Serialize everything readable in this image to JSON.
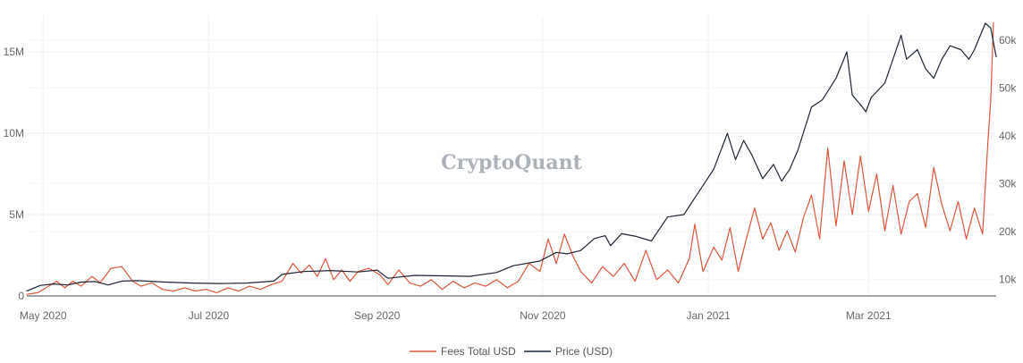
{
  "watermark": "CryptoQuant",
  "chart_data": {
    "type": "line",
    "x_type": "date",
    "xlim": [
      "2020-04-25",
      "2021-04-17"
    ],
    "x_ticks": [
      {
        "value": "2020-05-01",
        "label": "May 2020"
      },
      {
        "value": "2020-07-01",
        "label": "Jul 2020"
      },
      {
        "value": "2020-09-01",
        "label": "Sep 2020"
      },
      {
        "value": "2020-11-01",
        "label": "Nov 2020"
      },
      {
        "value": "2021-01-01",
        "label": "Jan 2021"
      },
      {
        "value": "2021-03-01",
        "label": "Mar 2021"
      }
    ],
    "y_left": {
      "ylim": [
        0,
        17200000
      ],
      "ticks": [
        {
          "value": 0,
          "label": "0"
        },
        {
          "value": 5000000,
          "label": "5M"
        },
        {
          "value": 10000000,
          "label": "10M"
        },
        {
          "value": 15000000,
          "label": "15M"
        }
      ]
    },
    "y_right": {
      "ylim": [
        6500,
        65000
      ],
      "ticks": [
        {
          "value": 10000,
          "label": "10k"
        },
        {
          "value": 20000,
          "label": "20k"
        },
        {
          "value": 30000,
          "label": "30k"
        },
        {
          "value": 40000,
          "label": "40k"
        },
        {
          "value": 50000,
          "label": "50k"
        },
        {
          "value": 60000,
          "label": "60k"
        }
      ]
    },
    "grid": true,
    "legend_position": "bottom-center",
    "series": [
      {
        "name": "Fees Total USD",
        "axis": "left",
        "color": "#e0553b",
        "points": [
          [
            "2020-04-25",
            100000
          ],
          [
            "2020-04-29",
            200000
          ],
          [
            "2020-05-03",
            600000
          ],
          [
            "2020-05-06",
            900000
          ],
          [
            "2020-05-09",
            500000
          ],
          [
            "2020-05-12",
            900000
          ],
          [
            "2020-05-15",
            600000
          ],
          [
            "2020-05-19",
            1200000
          ],
          [
            "2020-05-22",
            800000
          ],
          [
            "2020-05-26",
            1700000
          ],
          [
            "2020-05-30",
            1800000
          ],
          [
            "2020-06-03",
            900000
          ],
          [
            "2020-06-06",
            600000
          ],
          [
            "2020-06-10",
            800000
          ],
          [
            "2020-06-14",
            400000
          ],
          [
            "2020-06-18",
            300000
          ],
          [
            "2020-06-22",
            500000
          ],
          [
            "2020-06-26",
            300000
          ],
          [
            "2020-06-30",
            400000
          ],
          [
            "2020-07-04",
            200000
          ],
          [
            "2020-07-08",
            500000
          ],
          [
            "2020-07-12",
            300000
          ],
          [
            "2020-07-16",
            600000
          ],
          [
            "2020-07-20",
            400000
          ],
          [
            "2020-07-24",
            700000
          ],
          [
            "2020-07-28",
            900000
          ],
          [
            "2020-08-01",
            2000000
          ],
          [
            "2020-08-04",
            1400000
          ],
          [
            "2020-08-07",
            1900000
          ],
          [
            "2020-08-10",
            1200000
          ],
          [
            "2020-08-13",
            2300000
          ],
          [
            "2020-08-16",
            1000000
          ],
          [
            "2020-08-19",
            1600000
          ],
          [
            "2020-08-22",
            900000
          ],
          [
            "2020-08-25",
            1500000
          ],
          [
            "2020-08-29",
            1700000
          ],
          [
            "2020-09-02",
            1300000
          ],
          [
            "2020-09-05",
            700000
          ],
          [
            "2020-09-09",
            1600000
          ],
          [
            "2020-09-13",
            800000
          ],
          [
            "2020-09-17",
            600000
          ],
          [
            "2020-09-21",
            1000000
          ],
          [
            "2020-09-25",
            400000
          ],
          [
            "2020-09-29",
            900000
          ],
          [
            "2020-10-03",
            500000
          ],
          [
            "2020-10-07",
            800000
          ],
          [
            "2020-10-11",
            600000
          ],
          [
            "2020-10-15",
            1000000
          ],
          [
            "2020-10-19",
            500000
          ],
          [
            "2020-10-23",
            900000
          ],
          [
            "2020-10-27",
            2000000
          ],
          [
            "2020-10-31",
            1500000
          ],
          [
            "2020-11-03",
            3500000
          ],
          [
            "2020-11-06",
            2000000
          ],
          [
            "2020-11-09",
            3800000
          ],
          [
            "2020-11-12",
            2500000
          ],
          [
            "2020-11-15",
            1500000
          ],
          [
            "2020-11-19",
            800000
          ],
          [
            "2020-11-23",
            1800000
          ],
          [
            "2020-11-27",
            1200000
          ],
          [
            "2020-12-01",
            2000000
          ],
          [
            "2020-12-05",
            900000
          ],
          [
            "2020-12-09",
            2800000
          ],
          [
            "2020-12-13",
            1000000
          ],
          [
            "2020-12-17",
            1600000
          ],
          [
            "2020-12-21",
            800000
          ],
          [
            "2020-12-25",
            2300000
          ],
          [
            "2020-12-27",
            4400000
          ],
          [
            "2020-12-30",
            1500000
          ],
          [
            "2021-01-03",
            3000000
          ],
          [
            "2021-01-06",
            2200000
          ],
          [
            "2021-01-09",
            4200000
          ],
          [
            "2021-01-12",
            1500000
          ],
          [
            "2021-01-15",
            3500000
          ],
          [
            "2021-01-18",
            5400000
          ],
          [
            "2021-01-21",
            3500000
          ],
          [
            "2021-01-24",
            4500000
          ],
          [
            "2021-01-27",
            2800000
          ],
          [
            "2021-01-30",
            4000000
          ],
          [
            "2021-02-02",
            2700000
          ],
          [
            "2021-02-05",
            4800000
          ],
          [
            "2021-02-08",
            6200000
          ],
          [
            "2021-02-11",
            3500000
          ],
          [
            "2021-02-14",
            9100000
          ],
          [
            "2021-02-17",
            4300000
          ],
          [
            "2021-02-20",
            8300000
          ],
          [
            "2021-02-23",
            5000000
          ],
          [
            "2021-02-26",
            8600000
          ],
          [
            "2021-03-01",
            5200000
          ],
          [
            "2021-03-04",
            7500000
          ],
          [
            "2021-03-07",
            4000000
          ],
          [
            "2021-03-10",
            6800000
          ],
          [
            "2021-03-13",
            3800000
          ],
          [
            "2021-03-16",
            5800000
          ],
          [
            "2021-03-19",
            6300000
          ],
          [
            "2021-03-22",
            4200000
          ],
          [
            "2021-03-25",
            7900000
          ],
          [
            "2021-03-28",
            5600000
          ],
          [
            "2021-03-31",
            4000000
          ],
          [
            "2021-04-03",
            5800000
          ],
          [
            "2021-04-06",
            3500000
          ],
          [
            "2021-04-09",
            5400000
          ],
          [
            "2021-04-12",
            3800000
          ],
          [
            "2021-04-14",
            9600000
          ],
          [
            "2021-04-15",
            12000000
          ],
          [
            "2021-04-16",
            16800000
          ]
        ]
      },
      {
        "name": "Price (USD)",
        "axis": "right",
        "color": "#1c2536",
        "points": [
          [
            "2020-04-25",
            7550
          ],
          [
            "2020-04-30",
            8700
          ],
          [
            "2020-05-05",
            9000
          ],
          [
            "2020-05-10",
            8800
          ],
          [
            "2020-05-15",
            9400
          ],
          [
            "2020-05-20",
            9500
          ],
          [
            "2020-05-25",
            8800
          ],
          [
            "2020-05-30",
            9600
          ],
          [
            "2020-06-05",
            9700
          ],
          [
            "2020-06-15",
            9400
          ],
          [
            "2020-06-25",
            9200
          ],
          [
            "2020-07-05",
            9100
          ],
          [
            "2020-07-15",
            9200
          ],
          [
            "2020-07-25",
            9600
          ],
          [
            "2020-07-28",
            11000
          ],
          [
            "2020-08-05",
            11600
          ],
          [
            "2020-08-15",
            11800
          ],
          [
            "2020-08-25",
            11500
          ],
          [
            "2020-09-01",
            11900
          ],
          [
            "2020-09-05",
            10200
          ],
          [
            "2020-09-15",
            10800
          ],
          [
            "2020-09-25",
            10700
          ],
          [
            "2020-10-05",
            10600
          ],
          [
            "2020-10-15",
            11400
          ],
          [
            "2020-10-21",
            12800
          ],
          [
            "2020-10-31",
            13800
          ],
          [
            "2020-11-06",
            15600
          ],
          [
            "2020-11-10",
            15300
          ],
          [
            "2020-11-15",
            16000
          ],
          [
            "2020-11-20",
            18500
          ],
          [
            "2020-11-24",
            19100
          ],
          [
            "2020-11-26",
            17000
          ],
          [
            "2020-11-30",
            19500
          ],
          [
            "2020-12-05",
            19000
          ],
          [
            "2020-12-11",
            18000
          ],
          [
            "2020-12-17",
            23000
          ],
          [
            "2020-12-23",
            23500
          ],
          [
            "2020-12-27",
            27000
          ],
          [
            "2021-01-03",
            33000
          ],
          [
            "2021-01-08",
            40500
          ],
          [
            "2021-01-11",
            35000
          ],
          [
            "2021-01-14",
            39000
          ],
          [
            "2021-01-17",
            36000
          ],
          [
            "2021-01-21",
            31000
          ],
          [
            "2021-01-25",
            34000
          ],
          [
            "2021-01-28",
            30500
          ],
          [
            "2021-01-31",
            33000
          ],
          [
            "2021-02-03",
            37000
          ],
          [
            "2021-02-08",
            46000
          ],
          [
            "2021-02-12",
            47500
          ],
          [
            "2021-02-17",
            52000
          ],
          [
            "2021-02-21",
            57500
          ],
          [
            "2021-02-23",
            48500
          ],
          [
            "2021-02-26",
            46500
          ],
          [
            "2021-02-28",
            45000
          ],
          [
            "2021-03-02",
            48000
          ],
          [
            "2021-03-07",
            51000
          ],
          [
            "2021-03-13",
            61000
          ],
          [
            "2021-03-15",
            56000
          ],
          [
            "2021-03-19",
            58000
          ],
          [
            "2021-03-22",
            54000
          ],
          [
            "2021-03-25",
            52000
          ],
          [
            "2021-03-28",
            56000
          ],
          [
            "2021-03-31",
            58800
          ],
          [
            "2021-04-04",
            58000
          ],
          [
            "2021-04-07",
            56000
          ],
          [
            "2021-04-09",
            58000
          ],
          [
            "2021-04-13",
            63500
          ],
          [
            "2021-04-15",
            62500
          ],
          [
            "2021-04-17",
            56500
          ]
        ]
      }
    ]
  }
}
